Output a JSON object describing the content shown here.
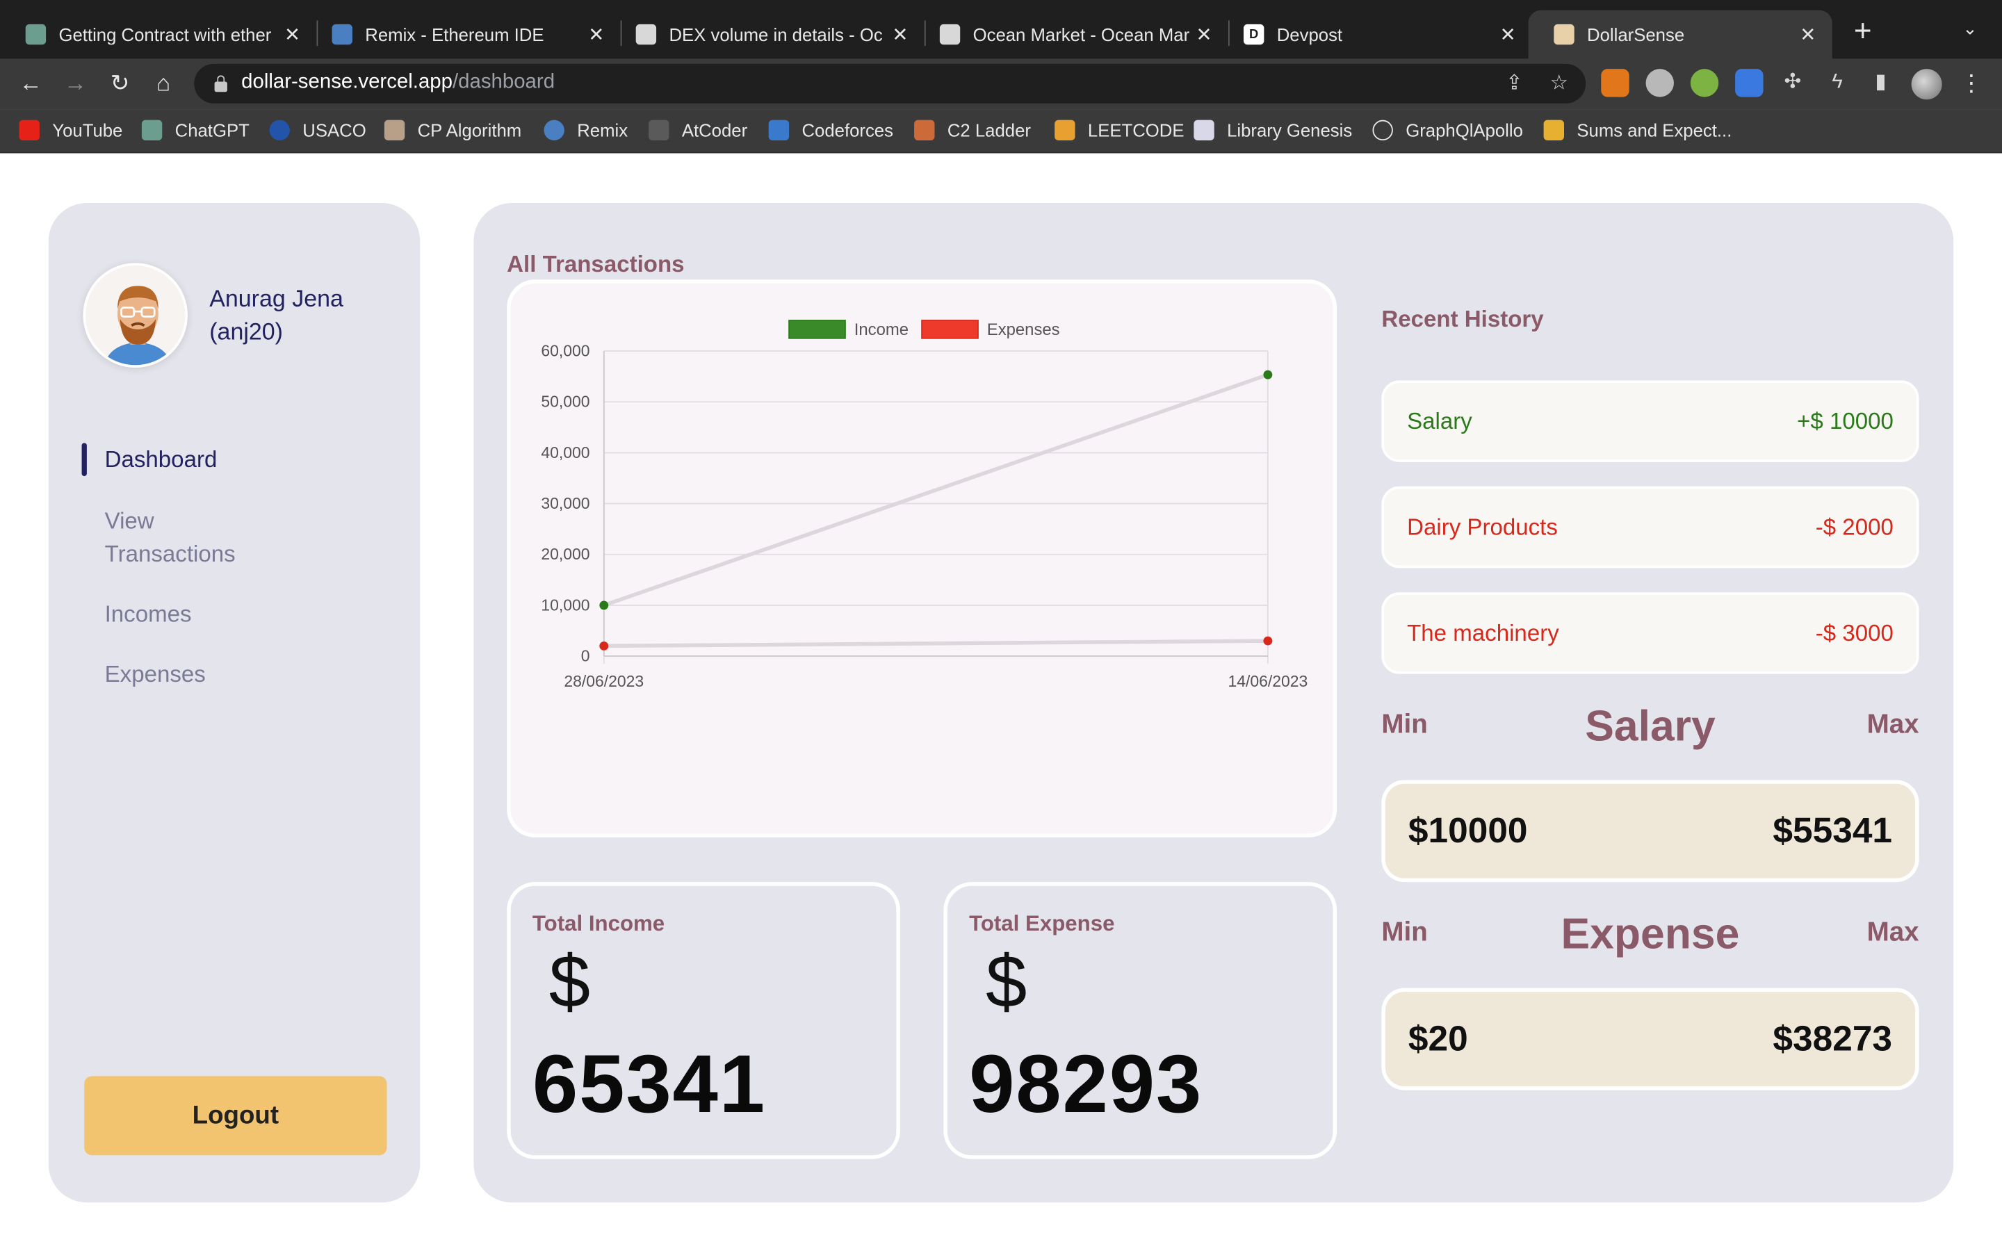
{
  "browser": {
    "tabs": [
      {
        "title": "Getting Contract with ether",
        "favicon_color": "#6b9e8e"
      },
      {
        "title": "Remix - Ethereum IDE",
        "favicon_color": "#4a7fc1"
      },
      {
        "title": "DEX volume in details - Oc",
        "favicon_color": "#d8d8d8"
      },
      {
        "title": "Ocean Market - Ocean Mar",
        "favicon_color": "#d8d8d8"
      },
      {
        "title": "Devpost",
        "favicon_color": "#1f1f1f",
        "favicon_letter": "D"
      },
      {
        "title": "DollarSense",
        "favicon_color": "#e8d0a8"
      }
    ],
    "url_host": "dollar-sense.vercel.app",
    "url_path": "/dashboard",
    "bookmarks": [
      {
        "label": "YouTube",
        "color": "#e62117"
      },
      {
        "label": "ChatGPT",
        "color": "#6b9e8e"
      },
      {
        "label": "USACO",
        "color": "#2255aa"
      },
      {
        "label": "CP Algorithm",
        "color": "#b8a088"
      },
      {
        "label": "Remix",
        "color": "#4a7fc1"
      },
      {
        "label": "AtCoder",
        "color": "#5a5a5a"
      },
      {
        "label": "Codeforces",
        "color": "#3a7acc"
      },
      {
        "label": "C2 Ladder",
        "color": "#cc6a3a"
      },
      {
        "label": "LEETCODE",
        "color": "#e8a030"
      },
      {
        "label": "Library Genesis",
        "color": "#d8d8e8"
      },
      {
        "label": "GraphQlApollo",
        "color": "#3a3a3a"
      },
      {
        "label": "Sums and Expect...",
        "color": "#e8b030"
      }
    ]
  },
  "profile": {
    "name_line1": "Anurag Jena",
    "name_line2": "(anj20)"
  },
  "nav": {
    "items": [
      {
        "label": "Dashboard"
      },
      {
        "label_line1": "View",
        "label_line2": "Transactions"
      },
      {
        "label": "Incomes"
      },
      {
        "label": "Expenses"
      }
    ],
    "logout_label": "Logout"
  },
  "main": {
    "all_transactions_title": "All Transactions",
    "recent_history_title": "Recent History",
    "total_income_label": "Total Income",
    "total_income_currency": "$",
    "total_income_value": "65341",
    "total_expense_label": "Total Expense",
    "total_expense_currency": "$",
    "total_expense_value": "98293"
  },
  "recent_history": [
    {
      "title": "Salary",
      "amount": "+$ 10000",
      "type": "income"
    },
    {
      "title": "Dairy Products",
      "amount": "-$ 2000",
      "type": "expense"
    },
    {
      "title": "The machinery",
      "amount": "-$ 3000",
      "type": "expense"
    }
  ],
  "salary_range": {
    "min_label": "Min",
    "title": "Salary",
    "max_label": "Max",
    "min_value": "$10000",
    "max_value": "$55341"
  },
  "expense_range": {
    "min_label": "Min",
    "title": "Expense",
    "max_label": "Max",
    "min_value": "$20",
    "max_value": "$38273"
  },
  "chart_data": {
    "type": "line",
    "categories": [
      "28/06/2023",
      "14/06/2023"
    ],
    "series": [
      {
        "name": "Income",
        "values": [
          10000,
          55341
        ],
        "color": "#2a7a1a",
        "legend_color": "#3a8a2a"
      },
      {
        "name": "Expenses",
        "values": [
          2000,
          3000
        ],
        "color": "#d8281c",
        "legend_color": "#ee3a2a"
      }
    ],
    "ylim": [
      0,
      60000
    ],
    "yticks": [
      0,
      10000,
      20000,
      30000,
      40000,
      50000,
      60000
    ],
    "ytick_labels": [
      "0",
      "10,000",
      "20,000",
      "30,000",
      "40,000",
      "50,000",
      "60,000"
    ],
    "grid": true,
    "legend_position": "top-center",
    "title": "",
    "xlabel": "",
    "ylabel": ""
  }
}
